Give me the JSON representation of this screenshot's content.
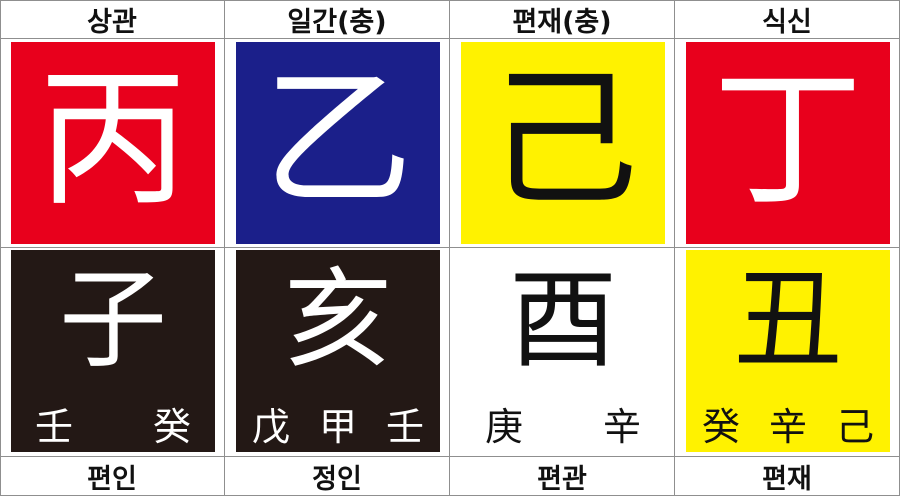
{
  "headers": [
    "상관",
    "일간(충)",
    "편재(충)",
    "식신"
  ],
  "footers": [
    "편인",
    "정인",
    "편관",
    "편재"
  ],
  "stems": [
    {
      "char": "丙",
      "bg": "#e8001c",
      "fg": "#ffffff"
    },
    {
      "char": "乙",
      "bg": "#1b1f8a",
      "fg": "#ffffff"
    },
    {
      "char": "己",
      "bg": "#fff200",
      "fg": "#111111"
    },
    {
      "char": "丁",
      "bg": "#e8001c",
      "fg": "#ffffff"
    }
  ],
  "branches": [
    {
      "char": "子",
      "hidden": [
        "壬",
        "癸"
      ],
      "bg": "#231815",
      "fg": "#ffffff"
    },
    {
      "char": "亥",
      "hidden": [
        "戊",
        "甲",
        "壬"
      ],
      "bg": "#231815",
      "fg": "#ffffff"
    },
    {
      "char": "酉",
      "hidden": [
        "庚",
        "辛"
      ],
      "bg": "#ffffff",
      "fg": "#111111"
    },
    {
      "char": "丑",
      "hidden": [
        "癸",
        "辛",
        "己"
      ],
      "bg": "#fff200",
      "fg": "#111111"
    }
  ]
}
